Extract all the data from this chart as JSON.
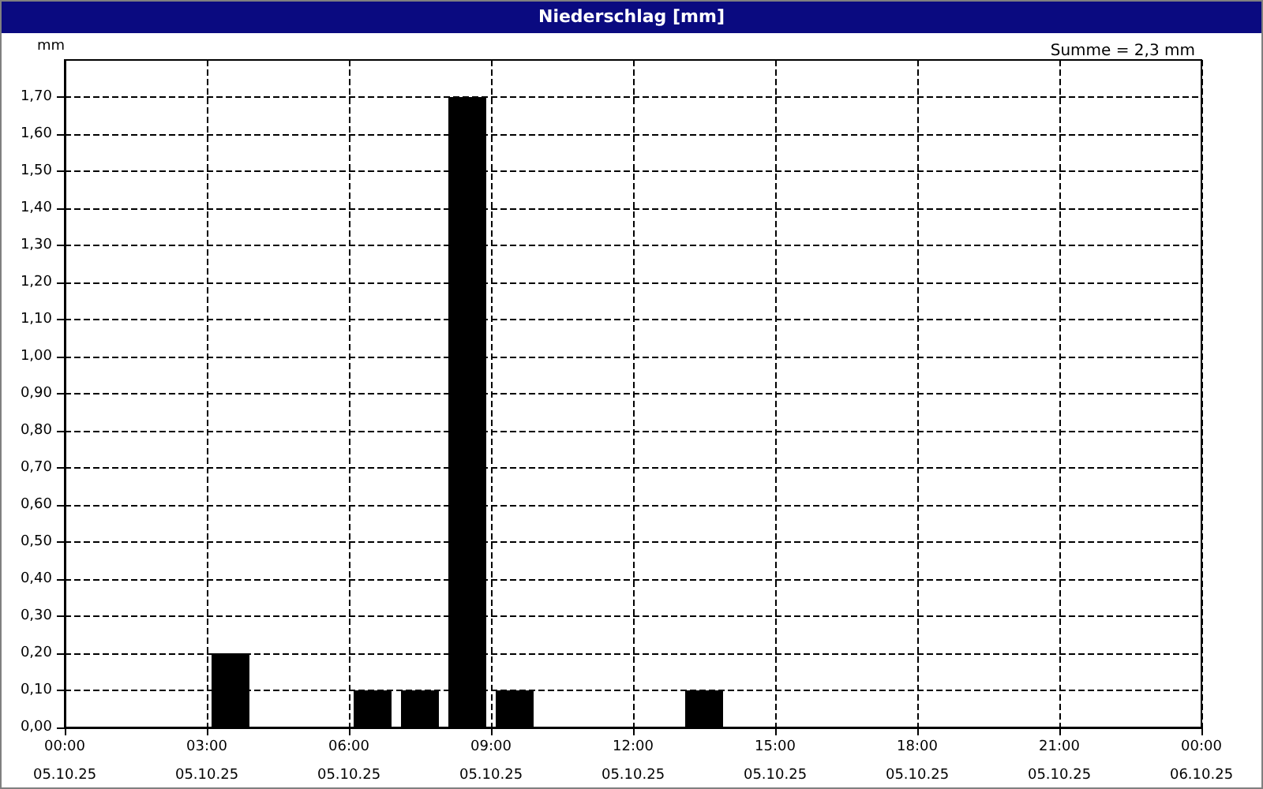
{
  "chart_data": {
    "type": "histogram",
    "title": "Niederschlag [mm]",
    "ylabel": "mm",
    "annotations": [
      "Summe = 2,3 mm"
    ],
    "bins": [
      0,
      1,
      2,
      3,
      4,
      5,
      6,
      7,
      8,
      9,
      10,
      11,
      12,
      13,
      14,
      15,
      16,
      17,
      18,
      19,
      20,
      21,
      22,
      23,
      24
    ],
    "values": [
      0,
      0,
      0,
      0.2,
      0,
      0,
      0.1,
      0.1,
      1.7,
      0.1,
      0,
      0,
      0,
      0.1,
      0,
      0,
      0,
      0,
      0,
      0,
      0,
      0,
      0,
      0
    ],
    "color": "#000000",
    "xlim": [
      0,
      24
    ],
    "xticks": [
      {
        "value": 0,
        "label": "00:00"
      },
      {
        "value": 3,
        "label": "03:00"
      },
      {
        "value": 6,
        "label": "06:00"
      },
      {
        "value": 9,
        "label": "09:00"
      },
      {
        "value": 12,
        "label": "12:00"
      },
      {
        "value": 15,
        "label": "15:00"
      },
      {
        "value": 18,
        "label": "18:00"
      },
      {
        "value": 21,
        "label": "21:00"
      },
      {
        "value": 24,
        "label": "00:00"
      }
    ],
    "x2lim": [
      "--10-05T00:00",
      "--10-06T00:00"
    ],
    "x2ticks": [
      {
        "value": "--10-05T00:00",
        "label": "05.10.25"
      },
      {
        "value": "--10-05T03:00",
        "label": "05.10.25"
      },
      {
        "value": "--10-05T06:00",
        "label": "05.10.25"
      },
      {
        "value": "--10-05T09:00",
        "label": "05.10.25"
      },
      {
        "value": "--10-05T12:00",
        "label": "05.10.25"
      },
      {
        "value": "--10-05T15:00",
        "label": "05.10.25"
      },
      {
        "value": "--10-05T18:00",
        "label": "05.10.25"
      },
      {
        "value": "--10-05T21:00",
        "label": "05.10.25"
      },
      {
        "value": "--10-06T00:00",
        "label": "06.10.25"
      }
    ],
    "ylim": [
      0,
      1.8
    ],
    "yticks": [
      {
        "value": 0,
        "label": "0,00"
      },
      {
        "value": 0.1,
        "label": "0,10"
      },
      {
        "value": 0.2,
        "label": "0,20"
      },
      {
        "value": 0.3,
        "label": "0,30"
      },
      {
        "value": 0.4,
        "label": "0,40"
      },
      {
        "value": 0.5,
        "label": "0,50"
      },
      {
        "value": 0.6,
        "label": "0,60"
      },
      {
        "value": 0.7,
        "label": "0,70"
      },
      {
        "value": 0.8,
        "label": "0,80"
      },
      {
        "value": 0.9,
        "label": "0,90"
      },
      {
        "value": 1.0,
        "label": "1,00"
      },
      {
        "value": 1.1,
        "label": "1,10"
      },
      {
        "value": 1.2,
        "label": "1,20"
      },
      {
        "value": 1.3,
        "label": "1,30"
      },
      {
        "value": 1.4,
        "label": "1,40"
      },
      {
        "value": 1.5,
        "label": "1,50"
      },
      {
        "value": 1.6,
        "label": "1,60"
      },
      {
        "value": 1.7,
        "label": "1,70"
      }
    ],
    "grid": true,
    "line_style": "dashed"
  }
}
